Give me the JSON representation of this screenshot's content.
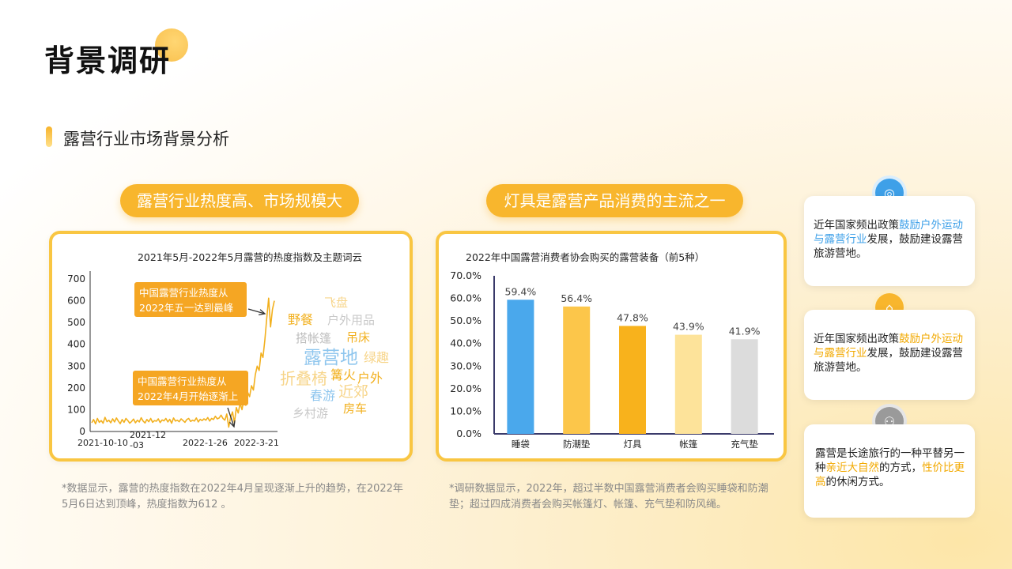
{
  "page": {
    "title": "背景调研",
    "subtitle": "露营行业市场背景分析"
  },
  "section_left": {
    "pill": "露营行业热度高、市场规模大",
    "note": "*数据显示，露营的热度指数在2022年4月呈现逐渐上升的趋势，在2022年5月6日达到顶峰，热度指数为612 。"
  },
  "section_mid": {
    "pill": "灯具是露营产品消费的主流之一",
    "note": "*调研数据显示，2022年，超过半数中国露营消费者会购买睡袋和防潮垫；超过四成消费者会购买帐篷灯、帐篷、充气垫和防风绳。"
  },
  "cards": [
    {
      "pre": "近年国家频出政策",
      "hl": "鼓励户外运动与露营行业",
      "post": "发展，鼓励建设露营旅游营地。",
      "icon": "coin-icon"
    },
    {
      "pre": "近年国家频出政策",
      "hl": "鼓励户外运动与露营行业",
      "post": "发展，鼓励建设露营旅游营地。",
      "icon": "building-icon"
    },
    {
      "pre": "露营是长途旅行的一种平替另一种",
      "hl": "亲近大自然",
      "mid": "的方式，",
      "hl2": "性价比更高",
      "post": "的休闲方式。",
      "icon": "people-icon"
    }
  ],
  "chart_data": [
    {
      "type": "line",
      "title": "2021年5月-2022年5月露营的热度指数及主题词云",
      "ylim": [
        0,
        700
      ],
      "y_ticks": [
        0,
        100,
        200,
        300,
        400,
        500,
        600,
        700
      ],
      "x_ticks": [
        "2021-10-10",
        "2021-12-03",
        "2022-1-26",
        "2022-3-21"
      ],
      "x_tick_labels": [
        "2021-10-10",
        "2021-12\n-03",
        "2022-1-26",
        "2022-3-21"
      ],
      "series_color": "#f2b01e",
      "baseline_values": [
        40,
        55,
        35,
        60,
        42,
        50,
        38,
        65,
        45,
        52,
        40,
        58,
        44,
        62,
        48,
        36,
        55,
        42,
        60,
        50,
        38,
        46,
        57,
        40,
        52,
        44,
        63,
        48,
        39,
        55,
        45,
        60,
        42,
        50,
        47,
        58,
        41,
        53,
        49,
        60,
        44,
        56,
        38,
        62,
        48,
        52,
        45,
        58,
        50,
        42,
        55,
        60,
        46,
        52,
        48,
        62,
        44,
        56,
        50,
        58,
        52,
        64,
        48,
        60,
        55,
        70,
        58,
        62,
        75,
        60,
        52,
        80,
        20,
        65,
        90,
        40,
        110,
        85,
        130,
        100,
        150,
        120,
        180,
        160,
        210,
        190,
        260,
        300,
        280,
        360,
        340,
        420,
        520,
        612,
        480,
        560,
        600
      ],
      "annotations": [
        {
          "text_line1": "中国露营行业热度从",
          "text_line2": "2022年五一达到最峰"
        },
        {
          "text_line1": "中国露营行业热度从",
          "text_line2": "2022年4月开始逐渐上"
        }
      ],
      "word_cloud": [
        {
          "word": "飞盘",
          "color": "#f7d58a"
        },
        {
          "word": "野餐",
          "color": "#f2b01e"
        },
        {
          "word": "户外用品",
          "color": "#c9c9c9"
        },
        {
          "word": "搭帐篷",
          "color": "#bdbdbd"
        },
        {
          "word": "吊床",
          "color": "#f2b01e"
        },
        {
          "word": "露营地",
          "color": "#8fc6ee"
        },
        {
          "word": "绿趣",
          "color": "#f7d58a"
        },
        {
          "word": "折叠椅",
          "color": "#f7d58a"
        },
        {
          "word": "篝火",
          "color": "#f2b01e"
        },
        {
          "word": "户外",
          "color": "#f2b01e"
        },
        {
          "word": "春游",
          "color": "#8fc6ee"
        },
        {
          "word": "近郊",
          "color": "#f7d58a"
        },
        {
          "word": "乡村游",
          "color": "#c9c9c9"
        },
        {
          "word": "房车",
          "color": "#f2b01e"
        }
      ]
    },
    {
      "type": "bar",
      "title": "2022年中国露营消费者协会购买的露营装备（前5种）",
      "categories": [
        "睡袋",
        "防潮垫",
        "灯具",
        "帐篷",
        "充气垫"
      ],
      "values": [
        59.4,
        56.4,
        47.8,
        43.9,
        41.9
      ],
      "value_labels": [
        "59.4%",
        "56.4%",
        "47.8%",
        "43.9%",
        "41.9%"
      ],
      "colors": [
        "#4aa8ec",
        "#fcc64a",
        "#f8b21c",
        "#fde39a",
        "#dcdcdc"
      ],
      "ylim": [
        0,
        70
      ],
      "y_ticks": [
        "0.0%",
        "10.0%",
        "20.0%",
        "30.0%",
        "40.0%",
        "50.0%",
        "60.0%",
        "70.0%"
      ]
    }
  ]
}
